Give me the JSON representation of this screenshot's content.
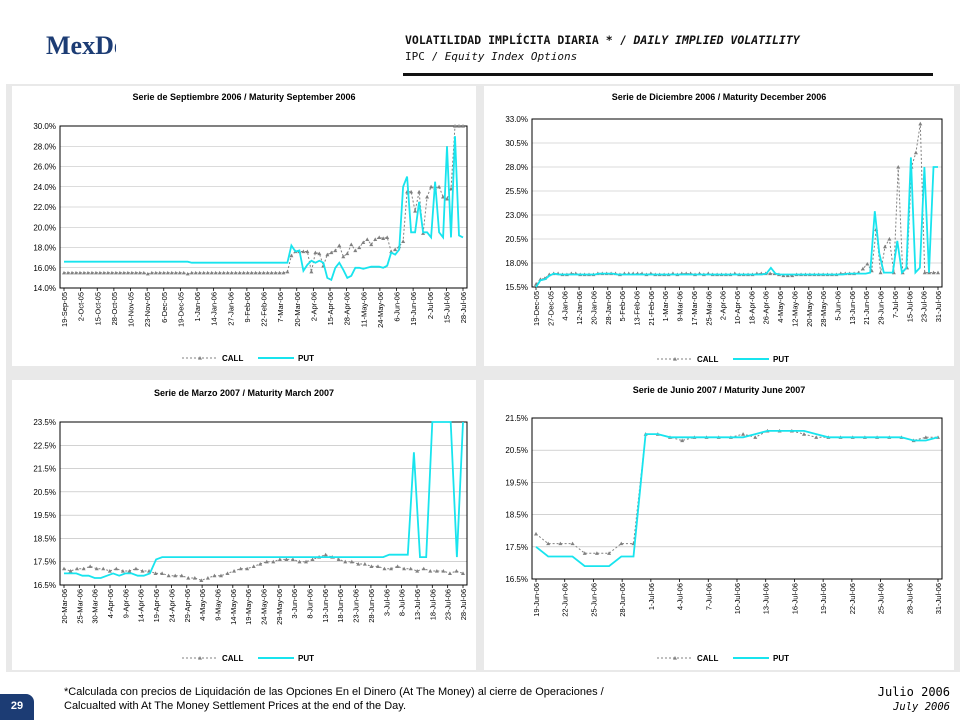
{
  "header": {
    "logo_text": "MexDer",
    "title_es": "VOLATILIDAD IMPLÍCITA DIARIA * /",
    "title_en": "DAILY IMPLIED VOLATILITY",
    "subtitle_es": "IPC /",
    "subtitle_en": "Equity Index Options"
  },
  "footer": {
    "note_line1": "*Calculada con precios de Liquidación de las Opciones En el Dinero (At The Money) al cierre de Operaciones /",
    "note_line2": "Calcualted with At The Money Settlement Prices at the end of the Day.",
    "date_es": "Julio 2006",
    "date_en": "July 2006",
    "page_number": "29"
  },
  "colors": {
    "call": "#808080",
    "put": "#18e4ee",
    "page_badge": "#1c3c74",
    "panel_bg": "#e9e9e9"
  },
  "chart_data": [
    {
      "type": "line",
      "title": "Serie de Septiembre 2006 / Maturity September 2006",
      "ylim": [
        14.0,
        30.0
      ],
      "yticks": [
        "14.0%",
        "16.0%",
        "18.0%",
        "20.0%",
        "22.0%",
        "24.0%",
        "26.0%",
        "28.0%",
        "30.0%"
      ],
      "xticks": [
        "19-Sep-05",
        "2-Oct-05",
        "15-Oct-05",
        "28-Oct-05",
        "10-Nov-05",
        "23-Nov-05",
        "6-Dec-05",
        "19-Dec-05",
        "1-Jan-06",
        "14-Jan-06",
        "27-Jan-06",
        "9-Feb-06",
        "22-Feb-06",
        "7-Mar-06",
        "20-Mar-06",
        "2-Apr-06",
        "15-Apr-06",
        "28-Apr-06",
        "11-May-06",
        "24-May-06",
        "6-Jun-06",
        "19-Jun-06",
        "2-Jul-06",
        "15-Jul-06",
        "28-Jul-06"
      ],
      "legend": [
        "CALL",
        "PUT"
      ],
      "series": [
        {
          "name": "CALL",
          "values": [
            15.5,
            15.5,
            15.5,
            15.5,
            15.5,
            15.5,
            15.5,
            15.5,
            15.5,
            15.5,
            15.5,
            15.5,
            15.5,
            15.5,
            15.5,
            15.5,
            15.5,
            15.5,
            15.5,
            15.5,
            15.5,
            15.4,
            15.5,
            15.5,
            15.5,
            15.5,
            15.5,
            15.5,
            15.5,
            15.5,
            15.5,
            15.4,
            15.5,
            15.5,
            15.5,
            15.5,
            15.5,
            15.5,
            15.5,
            15.5,
            15.5,
            15.5,
            15.5,
            15.5,
            15.5,
            15.5,
            15.5,
            15.5,
            15.5,
            15.5,
            15.5,
            15.5,
            15.5,
            15.5,
            15.5,
            15.5,
            15.6,
            17.2,
            17.6,
            17.6,
            17.6,
            17.6,
            15.6,
            17.5,
            17.4,
            16.2,
            17.3,
            17.5,
            17.7,
            18.2,
            17.1,
            17.4,
            18.3,
            17.7,
            18.0,
            18.5,
            18.8,
            18.3,
            18.8,
            19.0,
            18.9,
            19.0,
            17.6,
            17.8,
            18.1,
            18.6,
            23.5,
            23.5,
            21.6,
            23.5,
            19.4,
            23.0,
            24.0,
            23.9,
            24.0,
            23.0,
            22.8,
            23.8,
            30.0,
            30.0,
            30.0
          ]
        },
        {
          "name": "PUT",
          "values": [
            16.6,
            16.6,
            16.6,
            16.6,
            16.6,
            16.6,
            16.6,
            16.6,
            16.6,
            16.6,
            16.6,
            16.6,
            16.6,
            16.6,
            16.6,
            16.6,
            16.6,
            16.6,
            16.6,
            16.6,
            16.6,
            16.6,
            16.6,
            16.6,
            16.6,
            16.6,
            16.6,
            16.6,
            16.6,
            16.6,
            16.6,
            16.6,
            16.5,
            16.5,
            16.5,
            16.5,
            16.5,
            16.5,
            16.5,
            16.5,
            16.5,
            16.5,
            16.5,
            16.5,
            16.5,
            16.5,
            16.5,
            16.5,
            16.5,
            16.5,
            16.5,
            16.5,
            16.5,
            16.5,
            16.5,
            16.5,
            16.5,
            18.2,
            17.6,
            17.7,
            15.7,
            16.3,
            16.7,
            16.5,
            16.7,
            16.5,
            15.0,
            14.8,
            16.0,
            16.5,
            15.8,
            15.0,
            15.2,
            16.0,
            16.0,
            15.9,
            16.0,
            16.1,
            16.1,
            16.1,
            16.0,
            16.2,
            17.5,
            17.3,
            17.8,
            24.0,
            25.0,
            19.5,
            19.5,
            22.5,
            19.5,
            19.5,
            19.0,
            24.5,
            19.5,
            19.0,
            28.0,
            19.0,
            29.0,
            19.2,
            19.0
          ]
        }
      ]
    },
    {
      "type": "line",
      "title": "Serie de Diciembre 2006 / Maturity December 2006",
      "ylim": [
        15.5,
        33.0
      ],
      "yticks": [
        "15.5%",
        "18.0%",
        "20.5%",
        "23.0%",
        "25.5%",
        "28.0%",
        "30.5%",
        "33.0%"
      ],
      "xticks": [
        "19-Dec-05",
        "27-Dec-05",
        "4-Jan-06",
        "12-Jan-06",
        "20-Jan-06",
        "28-Jan-06",
        "5-Feb-06",
        "13-Feb-06",
        "21-Feb-06",
        "1-Mar-06",
        "9-Mar-06",
        "17-Mar-06",
        "25-Mar-06",
        "2-Apr-06",
        "10-Apr-06",
        "18-Apr-06",
        "26-Apr-06",
        "4-May-06",
        "12-May-06",
        "20-May-06",
        "28-May-06",
        "5-Jun-06",
        "13-Jun-06",
        "21-Jun-06",
        "29-Jun-06",
        "7-Jul-06",
        "15-Jul-06",
        "23-Jul-06",
        "31-Jul-06"
      ],
      "legend": [
        "CALL",
        "PUT"
      ],
      "series": [
        {
          "name": "CALL",
          "values": [
            15.8,
            16.3,
            16.4,
            16.8,
            16.9,
            16.9,
            16.8,
            16.8,
            16.9,
            16.9,
            16.8,
            16.8,
            16.8,
            16.8,
            16.9,
            16.9,
            16.9,
            16.9,
            16.9,
            16.8,
            16.9,
            16.9,
            16.9,
            16.9,
            16.9,
            16.8,
            16.9,
            16.8,
            16.8,
            16.8,
            16.8,
            16.9,
            16.8,
            16.9,
            16.9,
            16.9,
            16.8,
            16.9,
            16.8,
            16.9,
            16.8,
            16.8,
            16.8,
            16.8,
            16.8,
            16.9,
            16.8,
            16.8,
            16.8,
            16.8,
            16.9,
            16.9,
            16.9,
            16.9,
            16.9,
            16.8,
            16.7,
            16.7,
            16.7,
            16.8,
            16.8,
            16.8,
            16.8,
            16.8,
            16.8,
            16.8,
            16.8,
            16.8,
            16.8,
            16.9,
            16.9,
            16.9,
            16.9,
            17.0,
            17.4,
            17.9,
            17.2,
            21.5,
            17.0,
            19.7,
            20.5,
            17.0,
            28.0,
            17.0,
            17.5,
            28.0,
            29.5,
            32.5,
            17.0,
            17.0,
            17.0,
            17.0
          ]
        },
        {
          "name": "PUT",
          "values": [
            15.5,
            16.2,
            16.3,
            16.7,
            16.9,
            16.8,
            16.8,
            16.8,
            16.8,
            16.8,
            16.8,
            16.8,
            16.8,
            16.8,
            16.9,
            16.9,
            16.9,
            16.9,
            16.8,
            16.8,
            16.8,
            16.8,
            16.8,
            16.8,
            16.8,
            16.8,
            16.8,
            16.8,
            16.8,
            16.8,
            16.8,
            16.8,
            16.8,
            16.8,
            16.8,
            16.8,
            16.8,
            16.8,
            16.8,
            16.8,
            16.8,
            16.8,
            16.8,
            16.8,
            16.8,
            16.8,
            16.8,
            16.8,
            16.8,
            16.8,
            16.8,
            16.9,
            17.5,
            16.9,
            16.8,
            16.8,
            16.8,
            16.8,
            16.8,
            16.8,
            16.8,
            16.8,
            16.8,
            16.8,
            16.8,
            16.8,
            16.8,
            16.8,
            16.8,
            16.9,
            16.9,
            16.9,
            16.9,
            16.9,
            17.0,
            23.4,
            19.0,
            17.0,
            17.0,
            17.0,
            20.3,
            17.0,
            17.5,
            29.0,
            17.0,
            17.5,
            28.0,
            17.0,
            28.0,
            28.0
          ]
        }
      ]
    },
    {
      "type": "line",
      "title": "Serie de Marzo 2007 / Maturity March 2007",
      "ylim": [
        16.5,
        23.5
      ],
      "yticks": [
        "16.5%",
        "17.5%",
        "18.5%",
        "19.5%",
        "20.5%",
        "21.5%",
        "22.5%",
        "23.5%"
      ],
      "xticks": [
        "20-Mar-06",
        "25-Mar-06",
        "30-Mar-06",
        "4-Apr-06",
        "9-Apr-06",
        "14-Apr-06",
        "19-Apr-06",
        "24-Apr-06",
        "29-Apr-06",
        "4-May-06",
        "9-May-06",
        "14-May-06",
        "19-May-06",
        "24-May-06",
        "29-May-06",
        "3-Jun-06",
        "8-Jun-06",
        "13-Jun-06",
        "18-Jun-06",
        "23-Jun-06",
        "28-Jun-06",
        "3-Jul-06",
        "8-Jul-06",
        "13-Jul-06",
        "18-Jul-06",
        "23-Jul-06",
        "28-Jul-06"
      ],
      "legend": [
        "CALL",
        "PUT"
      ],
      "series": [
        {
          "name": "CALL",
          "values": [
            17.2,
            17.1,
            17.2,
            17.2,
            17.3,
            17.2,
            17.2,
            17.1,
            17.2,
            17.1,
            17.1,
            17.2,
            17.1,
            17.1,
            17.0,
            17.0,
            16.9,
            16.9,
            16.9,
            16.8,
            16.8,
            16.7,
            16.8,
            16.9,
            16.9,
            17.0,
            17.1,
            17.2,
            17.2,
            17.3,
            17.4,
            17.5,
            17.5,
            17.6,
            17.6,
            17.6,
            17.5,
            17.5,
            17.6,
            17.7,
            17.8,
            17.7,
            17.6,
            17.5,
            17.5,
            17.4,
            17.4,
            17.3,
            17.3,
            17.2,
            17.2,
            17.3,
            17.2,
            17.2,
            17.1,
            17.2,
            17.1,
            17.1,
            17.1,
            17.0,
            17.1,
            17.0
          ]
        },
        {
          "name": "PUT",
          "values": [
            17.0,
            17.0,
            17.0,
            16.9,
            16.9,
            16.8,
            16.8,
            16.9,
            17.0,
            16.9,
            17.0,
            17.0,
            16.9,
            16.9,
            17.0,
            17.6,
            17.7,
            17.7,
            17.7,
            17.7,
            17.7,
            17.7,
            17.7,
            17.7,
            17.7,
            17.7,
            17.7,
            17.7,
            17.7,
            17.7,
            17.7,
            17.7,
            17.7,
            17.7,
            17.7,
            17.7,
            17.7,
            17.7,
            17.7,
            17.7,
            17.7,
            17.7,
            17.7,
            17.7,
            17.7,
            17.7,
            17.7,
            17.7,
            17.7,
            17.7,
            17.7,
            17.7,
            17.7,
            17.8,
            17.8,
            17.8,
            17.8,
            22.2,
            17.7,
            17.7,
            23.5,
            23.5,
            23.5,
            23.5,
            17.7,
            23.5
          ]
        }
      ]
    },
    {
      "type": "line",
      "title": "Serie de Junio 2007 / Maturity June 2007",
      "ylim": [
        16.5,
        21.5
      ],
      "yticks": [
        "16.5%",
        "17.5%",
        "18.5%",
        "19.5%",
        "20.5%",
        "21.5%"
      ],
      "xticks": [
        "19-Jun-06",
        "22-Jun-06",
        "25-Jun-06",
        "28-Jun-06",
        "1-Jul-06",
        "4-Jul-06",
        "7-Jul-06",
        "10-Jul-06",
        "13-Jul-06",
        "16-Jul-06",
        "19-Jul-06",
        "22-Jul-06",
        "25-Jul-06",
        "28-Jul-06",
        "31-Jul-06"
      ],
      "legend": [
        "CALL",
        "PUT"
      ],
      "series": [
        {
          "name": "CALL",
          "values": [
            17.9,
            17.6,
            17.6,
            17.6,
            17.3,
            17.3,
            17.3,
            17.6,
            17.6,
            21.0,
            21.0,
            20.9,
            20.8,
            20.9,
            20.9,
            20.9,
            20.9,
            21.0,
            20.9,
            21.1,
            21.1,
            21.1,
            21.0,
            20.9,
            20.9,
            20.9,
            20.9,
            20.9,
            20.9,
            20.9,
            20.9,
            20.8,
            20.9,
            20.9
          ]
        },
        {
          "name": "PUT",
          "values": [
            17.5,
            17.2,
            17.2,
            17.2,
            16.9,
            16.9,
            16.9,
            17.2,
            17.2,
            21.0,
            21.0,
            20.9,
            20.9,
            20.9,
            20.9,
            20.9,
            20.9,
            20.9,
            21.0,
            21.1,
            21.1,
            21.1,
            21.1,
            21.0,
            20.9,
            20.9,
            20.9,
            20.9,
            20.9,
            20.9,
            20.9,
            20.8,
            20.8,
            20.9
          ]
        }
      ]
    }
  ]
}
